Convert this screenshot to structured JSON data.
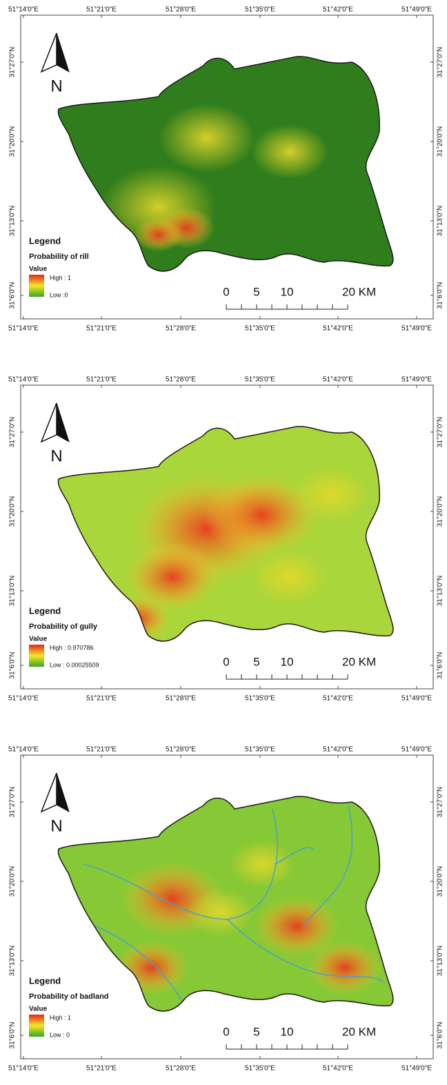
{
  "panels": [
    {
      "top_lon": [
        "51°14'0\"E",
        "51°21'0\"E",
        "51°28'0\"E",
        "51°35'0\"E",
        "51°42'0\"E",
        "51°49'0\"E"
      ],
      "bottom_lon": [
        "51°14'0\"E",
        "51°21'0\"E",
        "51°28'0\"E",
        "51°35'0\"E",
        "51°42'0\"E",
        "51°49'0\"E"
      ],
      "left_lat": [
        "31°27'0\"N",
        "31°20'0\"N",
        "31°13'0\"N",
        "31°6'0\"N"
      ],
      "right_lat": [
        "31°27'0\"N",
        "31°20'0\"N",
        "31°13'0\"N",
        "31°6'0\"N"
      ],
      "north": "N",
      "legend": {
        "title": "Legend",
        "layer": "Probability of rill",
        "value": "Value",
        "high": "High : 1",
        "low": "Low :0"
      },
      "scale": [
        "0",
        "5",
        "10",
        "20 KM"
      ]
    },
    {
      "top_lon": [
        "51°14'0\"E",
        "51°21'0\"E",
        "51°28'0\"E",
        "51°35'0\"E",
        "51°42'0\"E",
        "51°49'0\"E"
      ],
      "bottom_lon": [
        "51°14'0\"E",
        "51°21'0\"E",
        "51°28'0\"E",
        "51°35'0\"E",
        "51°42'0\"E",
        "51°49'0\"E"
      ],
      "left_lat": [
        "31°27'0\"N",
        "31°20'0\"N",
        "31°13'0\"N",
        "31°6'0\"N"
      ],
      "right_lat": [
        "31°27'0\"N",
        "31°20'0\"N",
        "31°13'0\"N",
        "31°6'0\"N"
      ],
      "north": "N",
      "legend": {
        "title": "Legend",
        "layer": "Probability of gully",
        "value": "Value",
        "high": "High : 0.970786",
        "low": "Low : 0.00025509"
      },
      "scale": [
        "0",
        "5",
        "10",
        "20 KM"
      ]
    },
    {
      "top_lon": [
        "51°14'0\"E",
        "51°21'0\"E",
        "51°28'0\"E",
        "51°35'0\"E",
        "51°42'0\"E",
        "51°49'0\"E"
      ],
      "bottom_lon": [
        "51°14'0\"E",
        "51°21'0\"E",
        "51°28'0\"E",
        "51°35'0\"E",
        "51°42'0\"E",
        "51°49'0\"E"
      ],
      "left_lat": [
        "31°27'0\"N",
        "31°20'0\"N",
        "31°13'0\"N",
        "31°6'0\"N"
      ],
      "right_lat": [
        "31°27'0\"N",
        "31°20'0\"N",
        "31°13'0\"N",
        "31°6'0\"N"
      ],
      "north": "N",
      "legend": {
        "title": "Legend",
        "layer": "Probability of badland",
        "value": "Value",
        "high": "High : 1",
        "low": "Low : 0"
      },
      "scale": [
        "0",
        "5",
        "10",
        "20 KM"
      ]
    }
  ]
}
